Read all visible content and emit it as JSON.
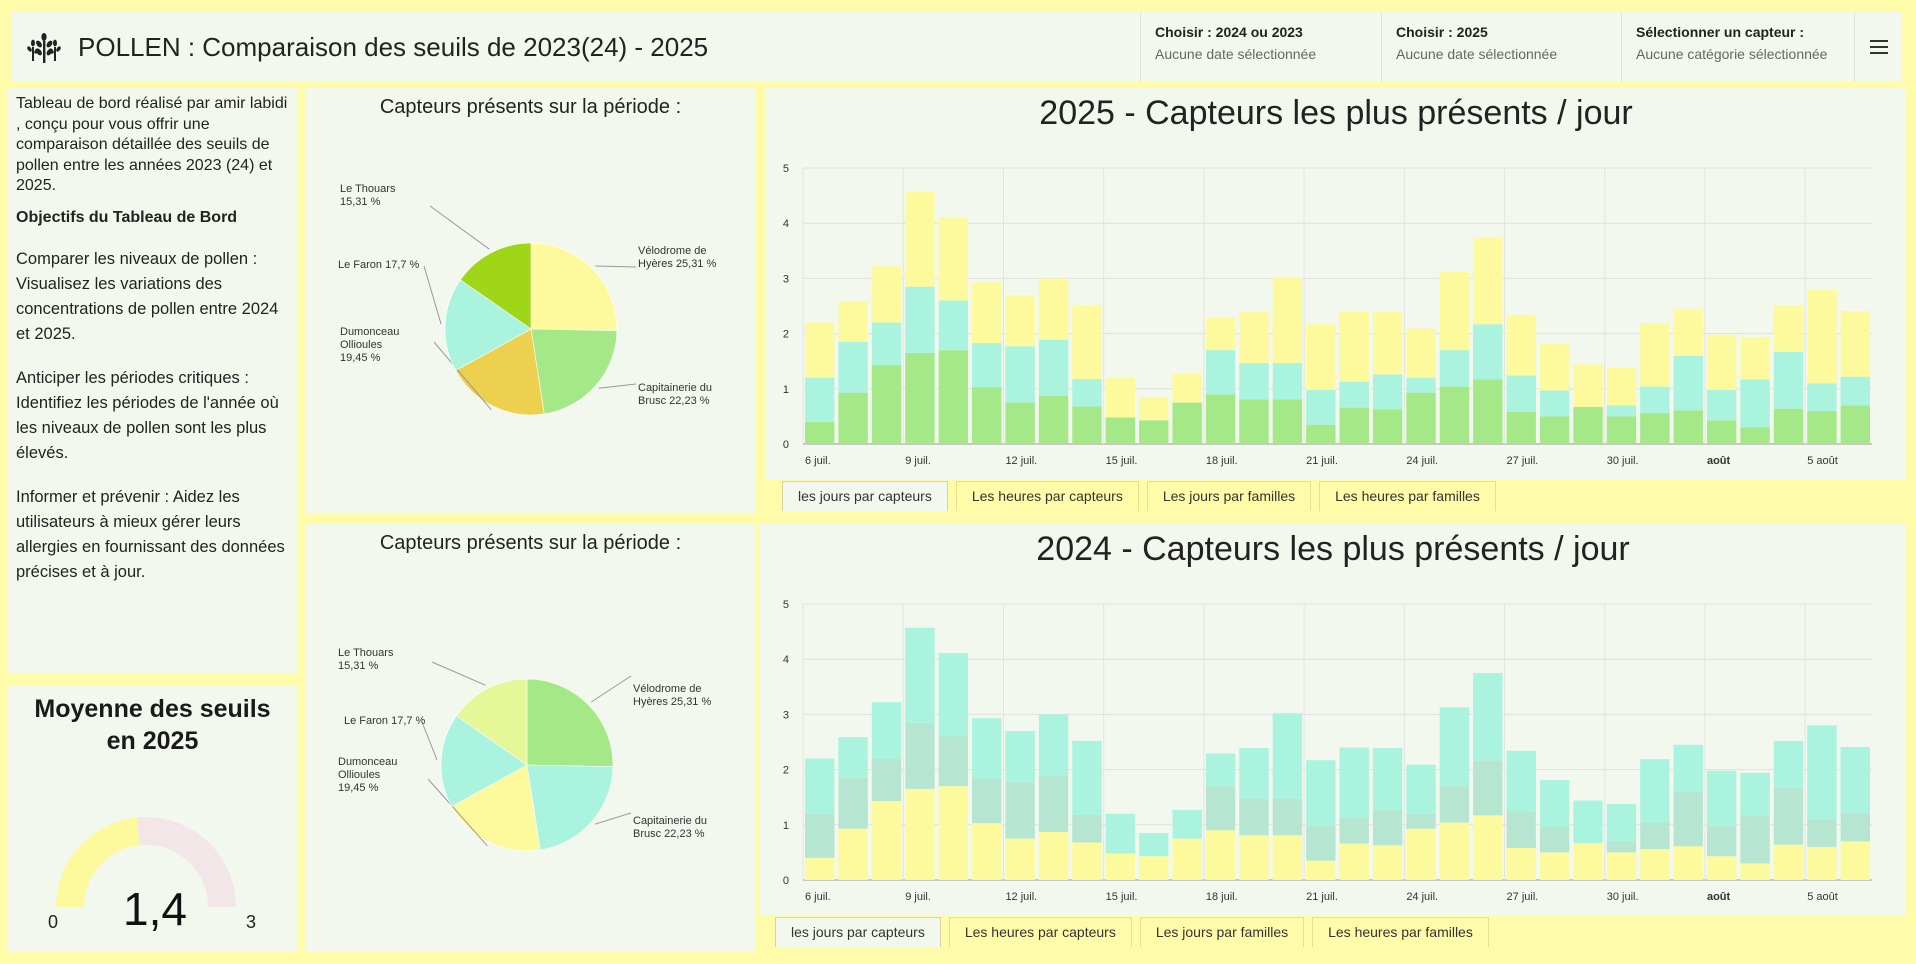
{
  "header": {
    "title": "POLLEN : Comparaison des seuils de 2023(24) - 2025",
    "filters": [
      {
        "label": "Choisir : 2024 ou 2023",
        "value": "Aucune date sélectionnée"
      },
      {
        "label": "Choisir : 2025",
        "value": "Aucune date sélectionnée"
      },
      {
        "label": "Sélectionner un capteur :",
        "value": "Aucune catégorie sélectionnée"
      }
    ]
  },
  "description": {
    "intro": "Tableau de bord réalisé par amir labidi , conçu pour vous offrir une comparaison détaillée des seuils de pollen entre les années 2023 (24) et 2025.",
    "objectives_title": "Objectifs du Tableau de Bord",
    "p1": "Comparer les niveaux de pollen : Visualisez les variations des concentrations de pollen entre 2024 et 2025.",
    "p2": "Anticiper les périodes critiques : Identifiez les périodes de l'année où les niveaux de pollen sont les plus élevés.",
    "p3": "Informer et prévenir : Aidez les utilisateurs à mieux gérer leurs allergies en fournissant des données précises et à jour."
  },
  "gauge": {
    "title_line1": "Moyenne des seuils",
    "title_line2": "en 2025",
    "value": 1.4,
    "value_label": "1,4",
    "min_label": "0",
    "max_label": "3",
    "min": 0,
    "max": 3,
    "fill_color": "#fdfa9e",
    "track_color": "#f3e6e8"
  },
  "colors": {
    "yellow": "#fdfa9e",
    "mint": "#a9f3df",
    "green": "#a5e887",
    "lime": "#9fd617",
    "gold": "#ecd04e",
    "lightlime": "#e6f797"
  },
  "tabs": [
    "les jours par capteurs",
    "Les heures par capteurs",
    "Les jours par familles",
    "Les heures par familles"
  ],
  "chart_data": [
    {
      "type": "pie",
      "title": "Capteurs présents sur la période :",
      "slices": [
        {
          "label": "Vélodrome de Hyères",
          "pct_label": "25,31 %",
          "value": 25.31,
          "color": "#fdfa9e"
        },
        {
          "label": "Capitainerie du Brusc",
          "pct_label": "22,23 %",
          "value": 22.23,
          "color": "#a5e887"
        },
        {
          "label": "Dumonceau Ollioules",
          "pct_label": "19,45 %",
          "value": 19.45,
          "color": "#ecd04e"
        },
        {
          "label": "Le Faron",
          "pct_label": "17,7 %",
          "value": 17.7,
          "color": "#a9f3df"
        },
        {
          "label": "Le Thouars",
          "pct_label": "15,31 %",
          "value": 15.31,
          "color": "#9fd617"
        }
      ]
    },
    {
      "type": "pie",
      "title": "Capteurs présents sur la période :",
      "slices": [
        {
          "label": "Vélodrome de Hyères",
          "pct_label": "25,31 %",
          "value": 25.31,
          "color": "#a5e887"
        },
        {
          "label": "Capitainerie du Brusc",
          "pct_label": "22,23 %",
          "value": 22.23,
          "color": "#a9f3df"
        },
        {
          "label": "Dumonceau Ollioules",
          "pct_label": "19,45 %",
          "value": 19.45,
          "color": "#fdfa9e"
        },
        {
          "label": "Le Faron",
          "pct_label": "17,7 %",
          "value": 17.7,
          "color": "#a9f3df"
        },
        {
          "label": "Le Thouars",
          "pct_label": "15,31 %",
          "value": 15.31,
          "color": "#e6f797"
        }
      ]
    },
    {
      "type": "bar",
      "stacked": true,
      "title": "2025 - Capteurs les plus présents / jour",
      "ylim": [
        0,
        5
      ],
      "yticks": [
        0,
        1,
        2,
        3,
        4,
        5
      ],
      "grid": true,
      "categories": [
        "6 juil.",
        "7 juil.",
        "8 juil.",
        "9 juil.",
        "10 juil.",
        "11 juil.",
        "12 juil.",
        "13 juil.",
        "14 juil.",
        "15 juil.",
        "16 juil.",
        "17 juil.",
        "18 juil.",
        "19 juil.",
        "20 juil.",
        "21 juil.",
        "22 juil.",
        "23 juil.",
        "24 juil.",
        "25 juil.",
        "26 juil.",
        "27 juil.",
        "28 juil.",
        "29 juil.",
        "30 juil.",
        "31 juil.",
        "août",
        "2 août",
        "3 août",
        "4 août",
        "5 août",
        "6 août"
      ],
      "tick_labels": [
        {
          "index": 0,
          "label": "6 juil."
        },
        {
          "index": 3,
          "label": "9 juil."
        },
        {
          "index": 6,
          "label": "12 juil."
        },
        {
          "index": 9,
          "label": "15 juil."
        },
        {
          "index": 12,
          "label": "18 juil."
        },
        {
          "index": 15,
          "label": "21 juil."
        },
        {
          "index": 18,
          "label": "24 juil."
        },
        {
          "index": 21,
          "label": "27 juil."
        },
        {
          "index": 24,
          "label": "30 juil."
        },
        {
          "index": 27,
          "label": "août",
          "bold": true
        },
        {
          "index": 30,
          "label": "5 août"
        }
      ],
      "series": [
        {
          "values": [
            0.4,
            0.93,
            1.43,
            1.65,
            1.7,
            1.03,
            0.75,
            0.87,
            0.68,
            0.48,
            0.43,
            0.75,
            0.9,
            0.81,
            0.81,
            0.35,
            0.66,
            0.63,
            0.93,
            1.04,
            1.17,
            0.58,
            0.5,
            0.67,
            0.5,
            0.56,
            0.61,
            0.43,
            0.3,
            0.64,
            0.6,
            0.7
          ],
          "color": "#a5e887"
        },
        {
          "values": [
            0.8,
            0.92,
            0.77,
            1.2,
            0.9,
            0.8,
            1.02,
            1.02,
            0.5,
            0.0,
            0.0,
            0.0,
            0.8,
            0.66,
            0.66,
            0.63,
            0.47,
            0.63,
            0.27,
            0.66,
            1.0,
            0.66,
            0.47,
            0.0,
            0.2,
            0.48,
            0.99,
            0.55,
            0.87,
            1.03,
            0.5,
            0.52
          ],
          "color": "#a9f3df"
        },
        {
          "values": [
            1.0,
            0.74,
            1.02,
            1.72,
            1.51,
            1.1,
            0.93,
            1.11,
            1.34,
            0.72,
            0.42,
            0.52,
            0.59,
            0.92,
            1.55,
            1.19,
            1.27,
            1.13,
            0.89,
            1.43,
            1.58,
            1.1,
            0.84,
            0.77,
            0.68,
            1.15,
            0.85,
            1.0,
            0.77,
            0.85,
            1.7,
            1.19
          ],
          "color": "#fdfa9e"
        }
      ]
    },
    {
      "type": "bar",
      "stacked": true,
      "title": "2024 - Capteurs les plus présents / jour",
      "ylim": [
        0,
        5
      ],
      "yticks": [
        0,
        1,
        2,
        3,
        4,
        5
      ],
      "grid": true,
      "categories": [
        "6 juil.",
        "7 juil.",
        "8 juil.",
        "9 juil.",
        "10 juil.",
        "11 juil.",
        "12 juil.",
        "13 juil.",
        "14 juil.",
        "15 juil.",
        "16 juil.",
        "17 juil.",
        "18 juil.",
        "19 juil.",
        "20 juil.",
        "21 juil.",
        "22 juil.",
        "23 juil.",
        "24 juil.",
        "25 juil.",
        "26 juil.",
        "27 juil.",
        "28 juil.",
        "29 juil.",
        "30 juil.",
        "31 juil.",
        "août",
        "2 août",
        "3 août",
        "4 août",
        "5 août",
        "6 août"
      ],
      "tick_labels": [
        {
          "index": 0,
          "label": "6 juil."
        },
        {
          "index": 3,
          "label": "9 juil."
        },
        {
          "index": 6,
          "label": "12 juil."
        },
        {
          "index": 9,
          "label": "15 juil."
        },
        {
          "index": 12,
          "label": "18 juil."
        },
        {
          "index": 15,
          "label": "21 juil."
        },
        {
          "index": 18,
          "label": "24 juil."
        },
        {
          "index": 21,
          "label": "27 juil."
        },
        {
          "index": 24,
          "label": "30 juil."
        },
        {
          "index": 27,
          "label": "août",
          "bold": true
        },
        {
          "index": 30,
          "label": "5 août"
        }
      ],
      "series": [
        {
          "values": [
            0.4,
            0.93,
            1.43,
            1.65,
            1.7,
            1.03,
            0.75,
            0.87,
            0.68,
            0.48,
            0.43,
            0.75,
            0.9,
            0.81,
            0.81,
            0.35,
            0.66,
            0.63,
            0.93,
            1.04,
            1.17,
            0.58,
            0.5,
            0.67,
            0.5,
            0.56,
            0.61,
            0.43,
            0.3,
            0.64,
            0.6,
            0.7
          ],
          "color": "#fdfa9e"
        },
        {
          "values": [
            0.8,
            0.92,
            0.77,
            1.2,
            0.9,
            0.8,
            1.02,
            1.02,
            0.5,
            0.0,
            0.0,
            0.0,
            0.8,
            0.66,
            0.66,
            0.63,
            0.47,
            0.63,
            0.27,
            0.66,
            1.0,
            0.66,
            0.47,
            0.0,
            0.2,
            0.48,
            0.99,
            0.55,
            0.87,
            1.03,
            0.5,
            0.52
          ],
          "color": "#b6e6d2"
        },
        {
          "values": [
            1.0,
            0.74,
            1.02,
            1.72,
            1.51,
            1.1,
            0.93,
            1.11,
            1.34,
            0.72,
            0.42,
            0.52,
            0.59,
            0.92,
            1.55,
            1.19,
            1.27,
            1.13,
            0.89,
            1.43,
            1.58,
            1.1,
            0.84,
            0.77,
            0.68,
            1.15,
            0.85,
            1.0,
            0.77,
            0.85,
            1.7,
            1.19
          ],
          "color": "#a9f3df"
        }
      ]
    }
  ]
}
